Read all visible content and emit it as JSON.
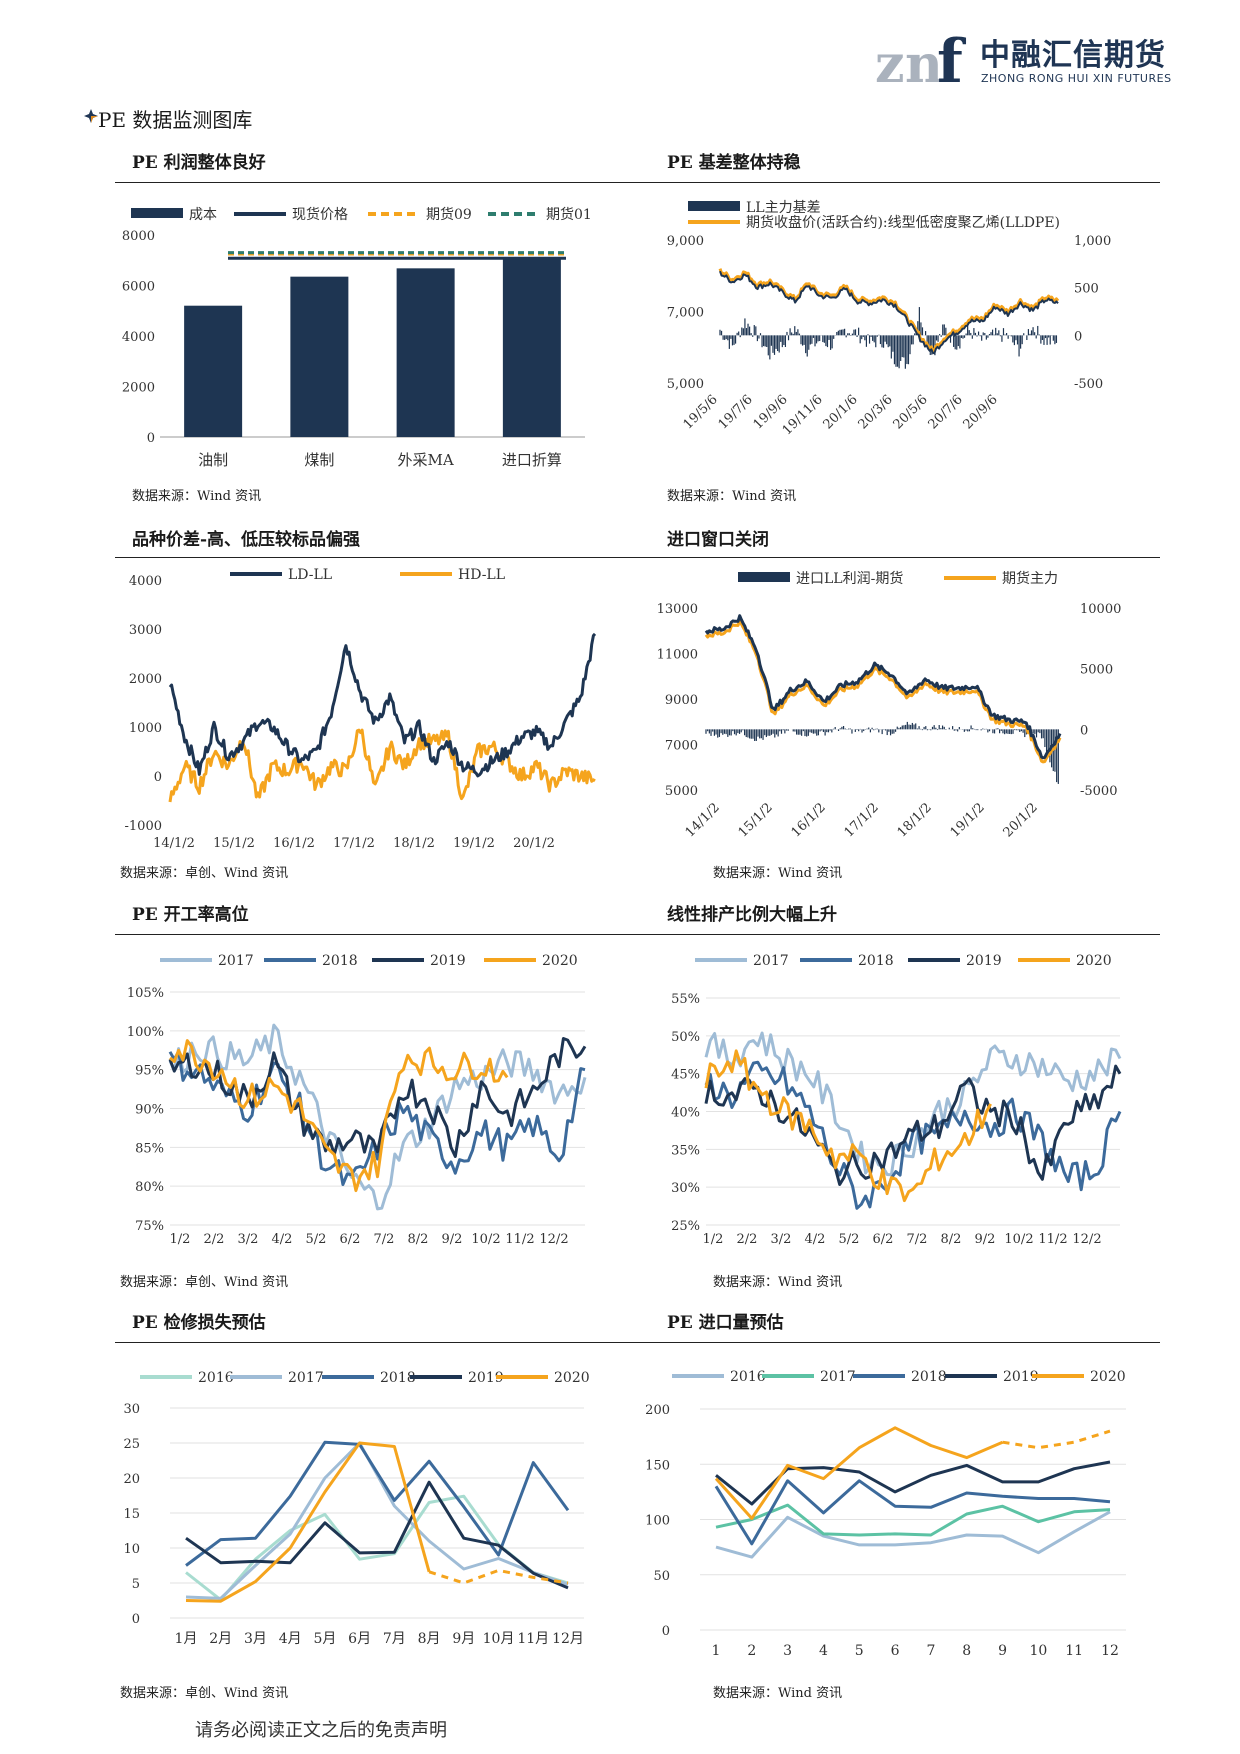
{
  "header": {
    "logo_mark": "znf",
    "logo_cn": "中融汇信期货",
    "logo_en": "ZHONG RONG HUI XIN FUTURES"
  },
  "section_title": "PE 数据监测图库",
  "footer": "请务必阅读正文之后的免责声明",
  "colors": {
    "navy": "#1e3552",
    "orange": "#f5a41d",
    "teal": "#2e7d6e",
    "steel": "#3c6a9b",
    "light": "#9fbcd6",
    "mint": "#5cc2a4",
    "pale": "#a8dcd0"
  },
  "panels": [
    {
      "title": "PE 利润整体良好",
      "source": "数据来源：Wind 资讯"
    },
    {
      "title": "PE 基差整体持稳",
      "source": "数据来源：Wind 资讯"
    },
    {
      "title": "品种价差-高、低压较标品偏强",
      "source": "数据来源：卓创、Wind 资讯"
    },
    {
      "title": "进口窗口关闭",
      "source": "数据来源：Wind 资讯"
    },
    {
      "title": "PE 开工率高位",
      "source": "数据来源：卓创、Wind 资讯"
    },
    {
      "title": "线性排产比例大幅上升",
      "source": "数据来源：Wind 资讯"
    },
    {
      "title": "PE 检修损失预估",
      "source": "数据来源：卓创、Wind 资讯"
    },
    {
      "title": "PE 进口量预估",
      "source": "数据来源：Wind 资讯"
    }
  ],
  "chart_data": [
    {
      "type": "bar",
      "legend": [
        "成本",
        "现货价格",
        "期货09",
        "期货01"
      ],
      "categories": [
        "油制",
        "煤制",
        "外采MA",
        "进口折算"
      ],
      "series": [
        {
          "name": "成本",
          "values": [
            5200,
            6350,
            6680,
            7100
          ]
        },
        {
          "name": "现货价格",
          "values": [
            7080,
            7080,
            7080,
            7080
          ]
        },
        {
          "name": "期货09",
          "values": [
            7250,
            7250,
            7250,
            7250
          ]
        },
        {
          "name": "期货01",
          "values": [
            7300,
            7300,
            7300,
            7300
          ]
        }
      ],
      "ylim": [
        0,
        8000
      ],
      "yticks": [
        "0",
        "2000",
        "4000",
        "6000",
        "8000"
      ]
    },
    {
      "type": "line",
      "legend": [
        "LL主力基差",
        "期货收盘价(活跃合约):线型低密度聚乙烯(LLDPE)"
      ],
      "x_ticks": [
        "19/5/6",
        "19/7/6",
        "19/9/6",
        "19/11/6",
        "20/1/6",
        "20/3/6",
        "20/5/6",
        "20/7/6",
        "20/9/6"
      ],
      "y_left_ticks": [
        "5,000",
        "7,000",
        "9,000"
      ],
      "y_right_ticks": [
        "-500",
        "0",
        "500",
        "1,000"
      ],
      "ylim_left": [
        5000,
        9000
      ],
      "ylim_right": [
        -500,
        1000
      ],
      "series": [
        {
          "name": "期货收盘价(活跃合约):线型低密度聚乙烯(LLDPE)",
          "axis": "left",
          "values": [
            8150,
            7900,
            8100,
            7750,
            7850,
            7600,
            7350,
            7800,
            7500,
            7450,
            7700,
            7350,
            7300,
            7400,
            7250,
            6800,
            6300,
            5900,
            6300,
            6500,
            6800,
            6800,
            7200,
            7000,
            7300,
            7100,
            7400,
            7300
          ]
        },
        {
          "name": "LL主力基差",
          "axis": "right",
          "values": [
            60,
            -120,
            150,
            0,
            -200,
            -100,
            80,
            -150,
            -50,
            -100,
            60,
            20,
            -80,
            -50,
            -250,
            -300,
            250,
            -200,
            80,
            -100,
            50,
            -50,
            0,
            0,
            -150,
            100,
            -50,
            -80
          ]
        }
      ]
    },
    {
      "type": "line",
      "legend": [
        "LD-LL",
        "HD-LL"
      ],
      "x_ticks": [
        "14/1/2",
        "15/1/2",
        "16/1/2",
        "17/1/2",
        "18/1/2",
        "19/1/2",
        "20/1/2"
      ],
      "y_ticks": [
        "-1000",
        "0",
        "1000",
        "2000",
        "3000",
        "4000"
      ],
      "ylim": [
        -1000,
        4000
      ],
      "series": [
        {
          "name": "LD-LL",
          "values": [
            1900,
            800,
            100,
            1000,
            400,
            700,
            1100,
            1000,
            600,
            300,
            500,
            1300,
            2700,
            1700,
            1100,
            1600,
            700,
            1000,
            300,
            700,
            200,
            100,
            300,
            500,
            800,
            900,
            600,
            1100,
            1600,
            2900
          ]
        },
        {
          "name": "HD-LL",
          "values": [
            -500,
            200,
            -200,
            500,
            200,
            800,
            -500,
            200,
            100,
            300,
            -200,
            200,
            100,
            1000,
            -300,
            600,
            200,
            700,
            700,
            800,
            -500,
            500,
            600,
            300,
            0,
            200,
            -200,
            100,
            0,
            -100
          ]
        }
      ]
    },
    {
      "type": "line",
      "legend": [
        "进口LL利润-期货",
        "期货主力"
      ],
      "x_ticks": [
        "14/1/2",
        "15/1/2",
        "16/1/2",
        "17/1/2",
        "18/1/2",
        "19/1/2",
        "20/1/2"
      ],
      "y_left_ticks": [
        "5000",
        "7000",
        "9000",
        "11000",
        "13000"
      ],
      "y_right_ticks": [
        "-5000",
        "0",
        "5000",
        "10000"
      ],
      "ylim_left": [
        5000,
        13000
      ],
      "ylim_right": [
        -5000,
        10000
      ],
      "series": [
        {
          "name": "期货主力",
          "axis": "left",
          "values": [
            11800,
            11900,
            12400,
            11000,
            8300,
            9200,
            9600,
            8700,
            9400,
            9600,
            10300,
            9900,
            9000,
            9700,
            9300,
            9300,
            9400,
            8100,
            7900,
            7800,
            6200,
            7300
          ]
        },
        {
          "name": "进口LL利润-期货",
          "axis": "right",
          "values": [
            -300,
            -500,
            -200,
            -800,
            -600,
            -100,
            -400,
            -300,
            100,
            -200,
            0,
            -300,
            400,
            100,
            200,
            0,
            100,
            -100,
            -200,
            -400,
            -500,
            -4500
          ]
        }
      ]
    },
    {
      "type": "line",
      "legend": [
        "2017",
        "2018",
        "2019",
        "2020"
      ],
      "x_ticks": [
        "1/2",
        "2/2",
        "3/2",
        "4/2",
        "5/2",
        "6/2",
        "7/2",
        "8/2",
        "9/2",
        "10/2",
        "11/2",
        "12/2"
      ],
      "y_ticks": [
        "75%",
        "80%",
        "85%",
        "90%",
        "95%",
        "100%",
        "105%"
      ],
      "ylim": [
        75,
        105
      ],
      "series": [
        {
          "name": "2017",
          "values": [
            95,
            98,
            97,
            96,
            99,
            94,
            87,
            81,
            78,
            85,
            88,
            93,
            94,
            96,
            95,
            92,
            94
          ]
        },
        {
          "name": "2018",
          "values": [
            96,
            95,
            92,
            90,
            95,
            90,
            83,
            80,
            85,
            90,
            86,
            83,
            87,
            85,
            88,
            84,
            95
          ]
        },
        {
          "name": "2019",
          "values": [
            95,
            96,
            94,
            91,
            96,
            89,
            85,
            86,
            84,
            93,
            91,
            85,
            93,
            89,
            92,
            97,
            98
          ]
        },
        {
          "name": "2020",
          "values": [
            98,
            97,
            95,
            91,
            93,
            90,
            84,
            81,
            83,
            97,
            96,
            95,
            96,
            94
          ]
        }
      ]
    },
    {
      "type": "line",
      "legend": [
        "2017",
        "2018",
        "2019",
        "2020"
      ],
      "x_ticks": [
        "1/2",
        "2/2",
        "3/2",
        "4/2",
        "5/2",
        "6/2",
        "7/2",
        "8/2",
        "9/2",
        "10/2",
        "11/2",
        "12/2"
      ],
      "y_ticks": [
        "25%",
        "30%",
        "35%",
        "40%",
        "45%",
        "50%",
        "55%"
      ],
      "ylim": [
        25,
        55
      ],
      "series": [
        {
          "name": "2017",
          "values": [
            49,
            47,
            50,
            47,
            45,
            40,
            34,
            33,
            36,
            40,
            42,
            47,
            47,
            46,
            44,
            45,
            47
          ]
        },
        {
          "name": "2018",
          "values": [
            44,
            42,
            45,
            44,
            40,
            33,
            28,
            31,
            36,
            37,
            40,
            38,
            40,
            36,
            31,
            32,
            40
          ]
        },
        {
          "name": "2019",
          "values": [
            43,
            42,
            43,
            40,
            37,
            32,
            33,
            34,
            37,
            38,
            43,
            40,
            39,
            31,
            39,
            41,
            45
          ]
        },
        {
          "name": "2020",
          "values": [
            44,
            47,
            43,
            40,
            38,
            34,
            34,
            30,
            29,
            34,
            36,
            41
          ]
        }
      ]
    },
    {
      "type": "line",
      "legend": [
        "2016",
        "2017",
        "2018",
        "2019",
        "2020"
      ],
      "categories": [
        "1月",
        "2月",
        "3月",
        "4月",
        "5月",
        "6月",
        "7月",
        "8月",
        "9月",
        "10月",
        "11月",
        "12月"
      ],
      "y_ticks": [
        "0",
        "5",
        "10",
        "15",
        "20",
        "25",
        "30"
      ],
      "ylim": [
        0,
        30
      ],
      "series": [
        {
          "name": "2016",
          "values": [
            6.5,
            2.6,
            8.4,
            12.5,
            14.8,
            8.4,
            9.2,
            16.5,
            17.4,
            10.5,
            6.5,
            5.0
          ]
        },
        {
          "name": "2017",
          "values": [
            3.0,
            2.8,
            7.5,
            12.0,
            20.0,
            25.0,
            16.0,
            11.0,
            7.0,
            8.5,
            6.5,
            4.8
          ]
        },
        {
          "name": "2018",
          "values": [
            7.5,
            11.2,
            11.4,
            17.4,
            25.1,
            24.8,
            16.8,
            22.4,
            15.9,
            9.0,
            22.2,
            15.4
          ]
        },
        {
          "name": "2019",
          "values": [
            11.4,
            7.9,
            8.1,
            7.9,
            13.6,
            9.3,
            9.4,
            19.4,
            11.4,
            10.4,
            6.4,
            4.3
          ]
        },
        {
          "name": "2020",
          "values": [
            2.5,
            2.4,
            5.2,
            10.0,
            18.0,
            25.0,
            24.5,
            6.6,
            5.0,
            6.8,
            5.8,
            5.0
          ]
        }
      ]
    },
    {
      "type": "line",
      "legend": [
        "2016",
        "2017",
        "2018",
        "2019",
        "2020"
      ],
      "categories": [
        "1",
        "2",
        "3",
        "4",
        "5",
        "6",
        "7",
        "8",
        "9",
        "10",
        "11",
        "12"
      ],
      "y_ticks": [
        "0",
        "50",
        "100",
        "150",
        "200"
      ],
      "ylim": [
        0,
        200
      ],
      "series": [
        {
          "name": "2016",
          "values": [
            75,
            66,
            102,
            85,
            77,
            77,
            79,
            86,
            85,
            70,
            89,
            107
          ]
        },
        {
          "name": "2017",
          "values": [
            93,
            100,
            113,
            87,
            86,
            87,
            86,
            105,
            112,
            98,
            107,
            109
          ]
        },
        {
          "name": "2018",
          "values": [
            130,
            78,
            135,
            106,
            135,
            112,
            111,
            124,
            121,
            119,
            119,
            116
          ]
        },
        {
          "name": "2019",
          "values": [
            140,
            114,
            146,
            147,
            143,
            125,
            140,
            149,
            134,
            134,
            146,
            152
          ]
        },
        {
          "name": "2020",
          "values": [
            137,
            101,
            149,
            137,
            165,
            183,
            167,
            156,
            170,
            165,
            170,
            180
          ]
        }
      ]
    }
  ]
}
